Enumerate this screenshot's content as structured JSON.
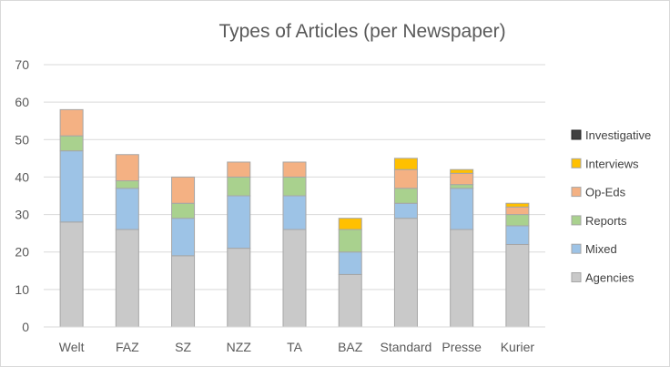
{
  "chart_data": {
    "type": "bar",
    "stacked": true,
    "title": "Types of Articles (per Newspaper)",
    "xlabel": "",
    "ylabel": "",
    "ylim": [
      0,
      70
    ],
    "yticks": [
      0,
      10,
      20,
      30,
      40,
      50,
      60,
      70
    ],
    "grid": true,
    "legend_position": "right",
    "categories": [
      "Welt",
      "FAZ",
      "SZ",
      "NZZ",
      "TA",
      "BAZ",
      "Standard",
      "Presse",
      "Kurier"
    ],
    "series": [
      {
        "name": "Agencies",
        "color": "#c9c9c9",
        "values": [
          28,
          26,
          19,
          21,
          26,
          14,
          29,
          26,
          22
        ]
      },
      {
        "name": "Mixed",
        "color": "#9dc3e6",
        "values": [
          19,
          11,
          10,
          14,
          9,
          6,
          4,
          11,
          5
        ]
      },
      {
        "name": "Reports",
        "color": "#a9d18e",
        "values": [
          4,
          2,
          4,
          5,
          5,
          6,
          4,
          1,
          3
        ]
      },
      {
        "name": "Op-Eds",
        "color": "#f4b183",
        "values": [
          7,
          7,
          7,
          4,
          4,
          0,
          5,
          3,
          2
        ]
      },
      {
        "name": "Interviews",
        "color": "#ffc000",
        "values": [
          0,
          0,
          0,
          0,
          0,
          3,
          3,
          1,
          1
        ]
      },
      {
        "name": "Investigative",
        "color": "#404040",
        "values": [
          0,
          0,
          0,
          0,
          0,
          0,
          0,
          0,
          0
        ]
      }
    ],
    "legend_order": [
      "Investigative",
      "Interviews",
      "Op-Eds",
      "Reports",
      "Mixed",
      "Agencies"
    ]
  }
}
